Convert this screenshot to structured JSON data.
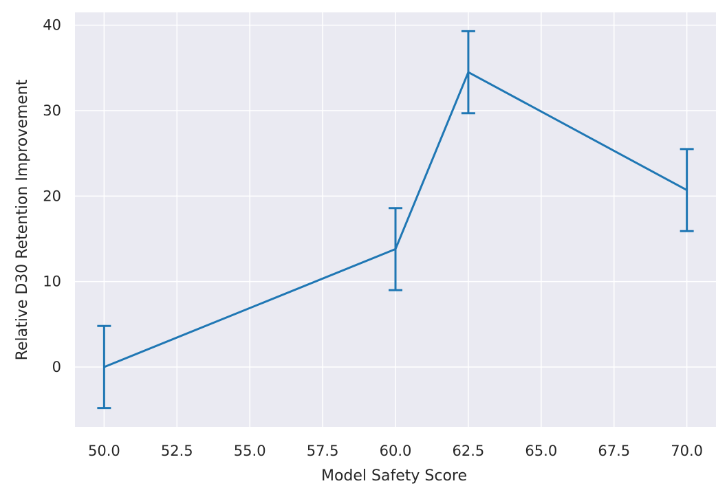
{
  "chart_data": {
    "type": "line",
    "title": "",
    "xlabel": "Model Safety Score",
    "ylabel": "Relative D30 Retention Improvement",
    "xlim": [
      49.0,
      71.0
    ],
    "ylim": [
      -7.0,
      41.5
    ],
    "x_ticks": [
      "50.0",
      "52.5",
      "55.0",
      "57.5",
      "60.0",
      "62.5",
      "65.0",
      "67.5",
      "70.0"
    ],
    "y_ticks": [
      "0",
      "10",
      "20",
      "30",
      "40"
    ],
    "grid": true,
    "colors": {
      "background": "#eaeaf2",
      "grid": "#ffffff",
      "line": "#1f77b4",
      "text": "#262626"
    },
    "series": [
      {
        "x": [
          50.0,
          60.0,
          62.5,
          70.0
        ],
        "y": [
          0.0,
          13.8,
          34.5,
          20.7
        ],
        "error": [
          4.8,
          4.8,
          4.8,
          4.8
        ]
      }
    ]
  }
}
